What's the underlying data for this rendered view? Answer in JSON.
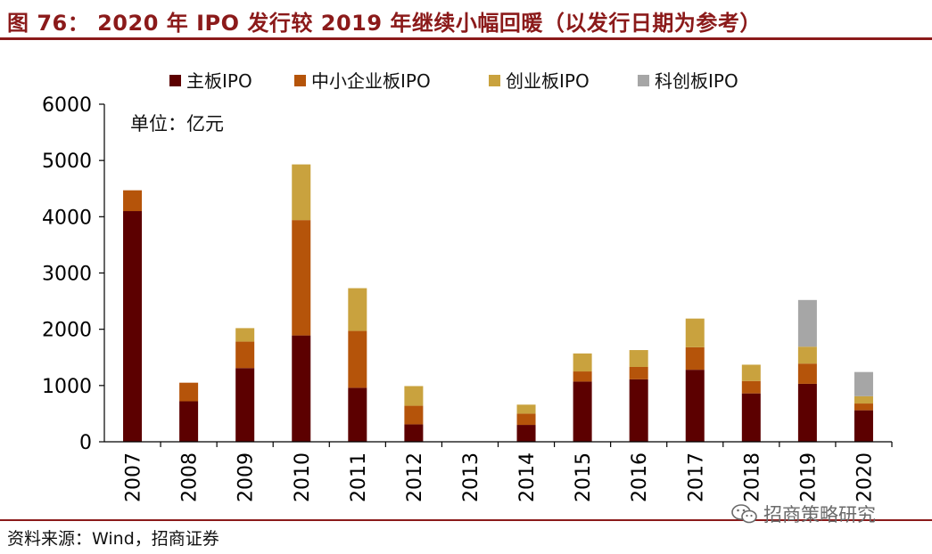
{
  "title": "图 76： 2020 年 IPO 发行较 2019 年继续小幅回暖（以发行日期为参考）",
  "source": "资料来源：Wind，招商证券",
  "watermark": "招商策略研究",
  "chart_data": {
    "type": "bar",
    "stacked": true,
    "unit_label": "单位：亿元",
    "categories": [
      "2007",
      "2008",
      "2009",
      "2010",
      "2011",
      "2012",
      "2013",
      "2014",
      "2015",
      "2016",
      "2017",
      "2018",
      "2019",
      "2020"
    ],
    "series": [
      {
        "name": "主板IPO",
        "color": "#5c0000",
        "values": [
          4100,
          720,
          1310,
          1890,
          960,
          310,
          0,
          300,
          1070,
          1110,
          1280,
          860,
          1030,
          560
        ]
      },
      {
        "name": "中小企业板IPO",
        "color": "#b5540a",
        "values": [
          370,
          330,
          470,
          2050,
          1010,
          330,
          0,
          200,
          180,
          220,
          400,
          220,
          360,
          120
        ]
      },
      {
        "name": "创业板IPO",
        "color": "#c9a23e",
        "values": [
          0,
          0,
          240,
          990,
          760,
          350,
          0,
          160,
          320,
          300,
          510,
          290,
          300,
          130
        ]
      },
      {
        "name": "科创板IPO",
        "color": "#a6a6a6",
        "values": [
          0,
          0,
          0,
          0,
          0,
          0,
          0,
          0,
          0,
          0,
          0,
          0,
          830,
          430
        ]
      }
    ],
    "ylim": [
      0,
      6000
    ],
    "yticks": [
      0,
      1000,
      2000,
      3000,
      4000,
      5000,
      6000
    ],
    "legend_position": "top",
    "grid": false
  }
}
